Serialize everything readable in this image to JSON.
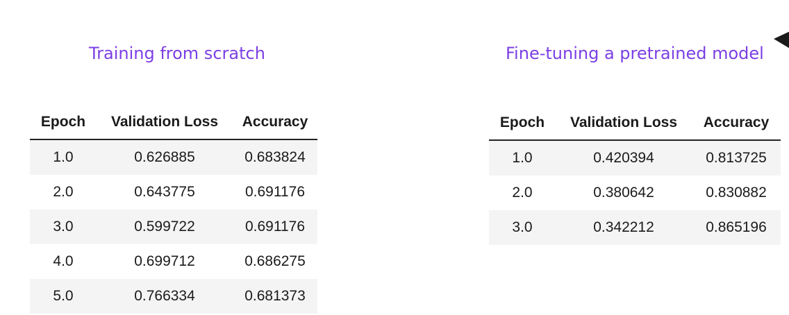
{
  "panels": [
    {
      "title": "Training from scratch",
      "headers": [
        "Epoch",
        "Validation Loss",
        "Accuracy"
      ],
      "rows": [
        [
          "1.0",
          "0.626885",
          "0.683824"
        ],
        [
          "2.0",
          "0.643775",
          "0.691176"
        ],
        [
          "3.0",
          "0.599722",
          "0.691176"
        ],
        [
          "4.0",
          "0.699712",
          "0.686275"
        ],
        [
          "5.0",
          "0.766334",
          "0.681373"
        ]
      ]
    },
    {
      "title": "Fine-tuning a pretrained model",
      "headers": [
        "Epoch",
        "Validation Loss",
        "Accuracy"
      ],
      "rows": [
        [
          "1.0",
          "0.420394",
          "0.813725"
        ],
        [
          "2.0",
          "0.380642",
          "0.830882"
        ],
        [
          "3.0",
          "0.342212",
          "0.865196"
        ]
      ]
    }
  ],
  "colors": {
    "title": "#7b3fe4",
    "text": "#1a1a1a",
    "stripe": "#f4f4f5",
    "rule": "#222222"
  }
}
